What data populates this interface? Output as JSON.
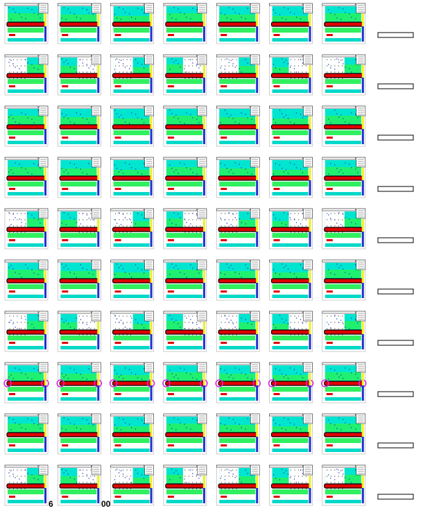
{
  "footer": {
    "fragments": [
      "6",
      "00"
    ]
  }
}
